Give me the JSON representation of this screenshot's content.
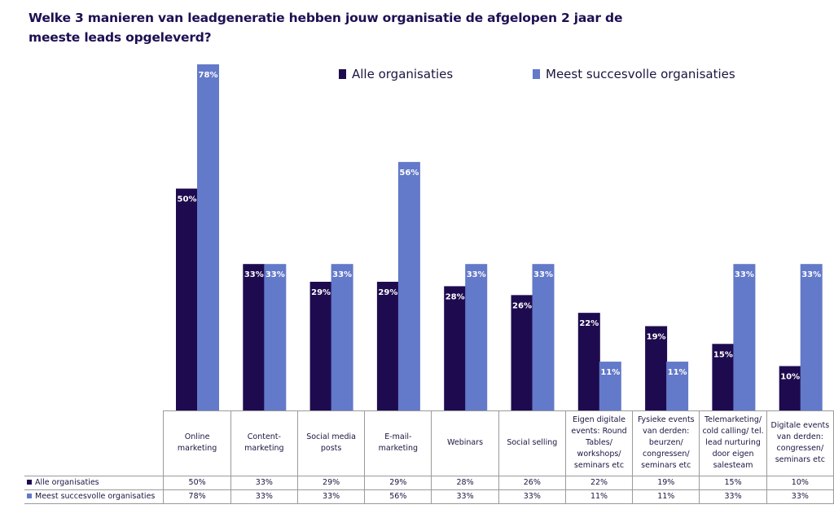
{
  "title": "Welke 3 manieren van leadgeneratie hebben jouw organisatie de afgelopen 2 jaar de meeste leads opgeleverd?",
  "colors": {
    "series1": "#1e0b4f",
    "series2": "#6379c9"
  },
  "chart_data": {
    "type": "bar",
    "categories": [
      "Online marketing",
      "Content-marketing",
      "Social media posts",
      "E-mail-marketing",
      "Webinars",
      "Social selling",
      "Eigen digitale events: Round Tables/ workshops/ seminars etc",
      "Fysieke events van derden: beurzen/ congressen/ seminars etc",
      "Telemarketing/ cold calling/ tel. lead nurturing door eigen salesteam",
      "Digitale events van derden: congressen/ seminars etc"
    ],
    "series": [
      {
        "name": "Alle organisaties",
        "values": [
          50,
          33,
          29,
          29,
          28,
          26,
          22,
          19,
          15,
          10
        ],
        "labels": [
          "50%",
          "33%",
          "29%",
          "29%",
          "28%",
          "26%",
          "22%",
          "19%",
          "15%",
          "10%"
        ]
      },
      {
        "name": "Meest succesvolle organisaties",
        "values": [
          78,
          33,
          33,
          56,
          33,
          33,
          11,
          11,
          33,
          33
        ],
        "labels": [
          "78%",
          "33%",
          "33%",
          "56%",
          "33%",
          "33%",
          "11%",
          "11%",
          "33%",
          "33%"
        ]
      }
    ],
    "ylim": [
      0,
      78
    ],
    "legend": "top",
    "grid": false
  }
}
